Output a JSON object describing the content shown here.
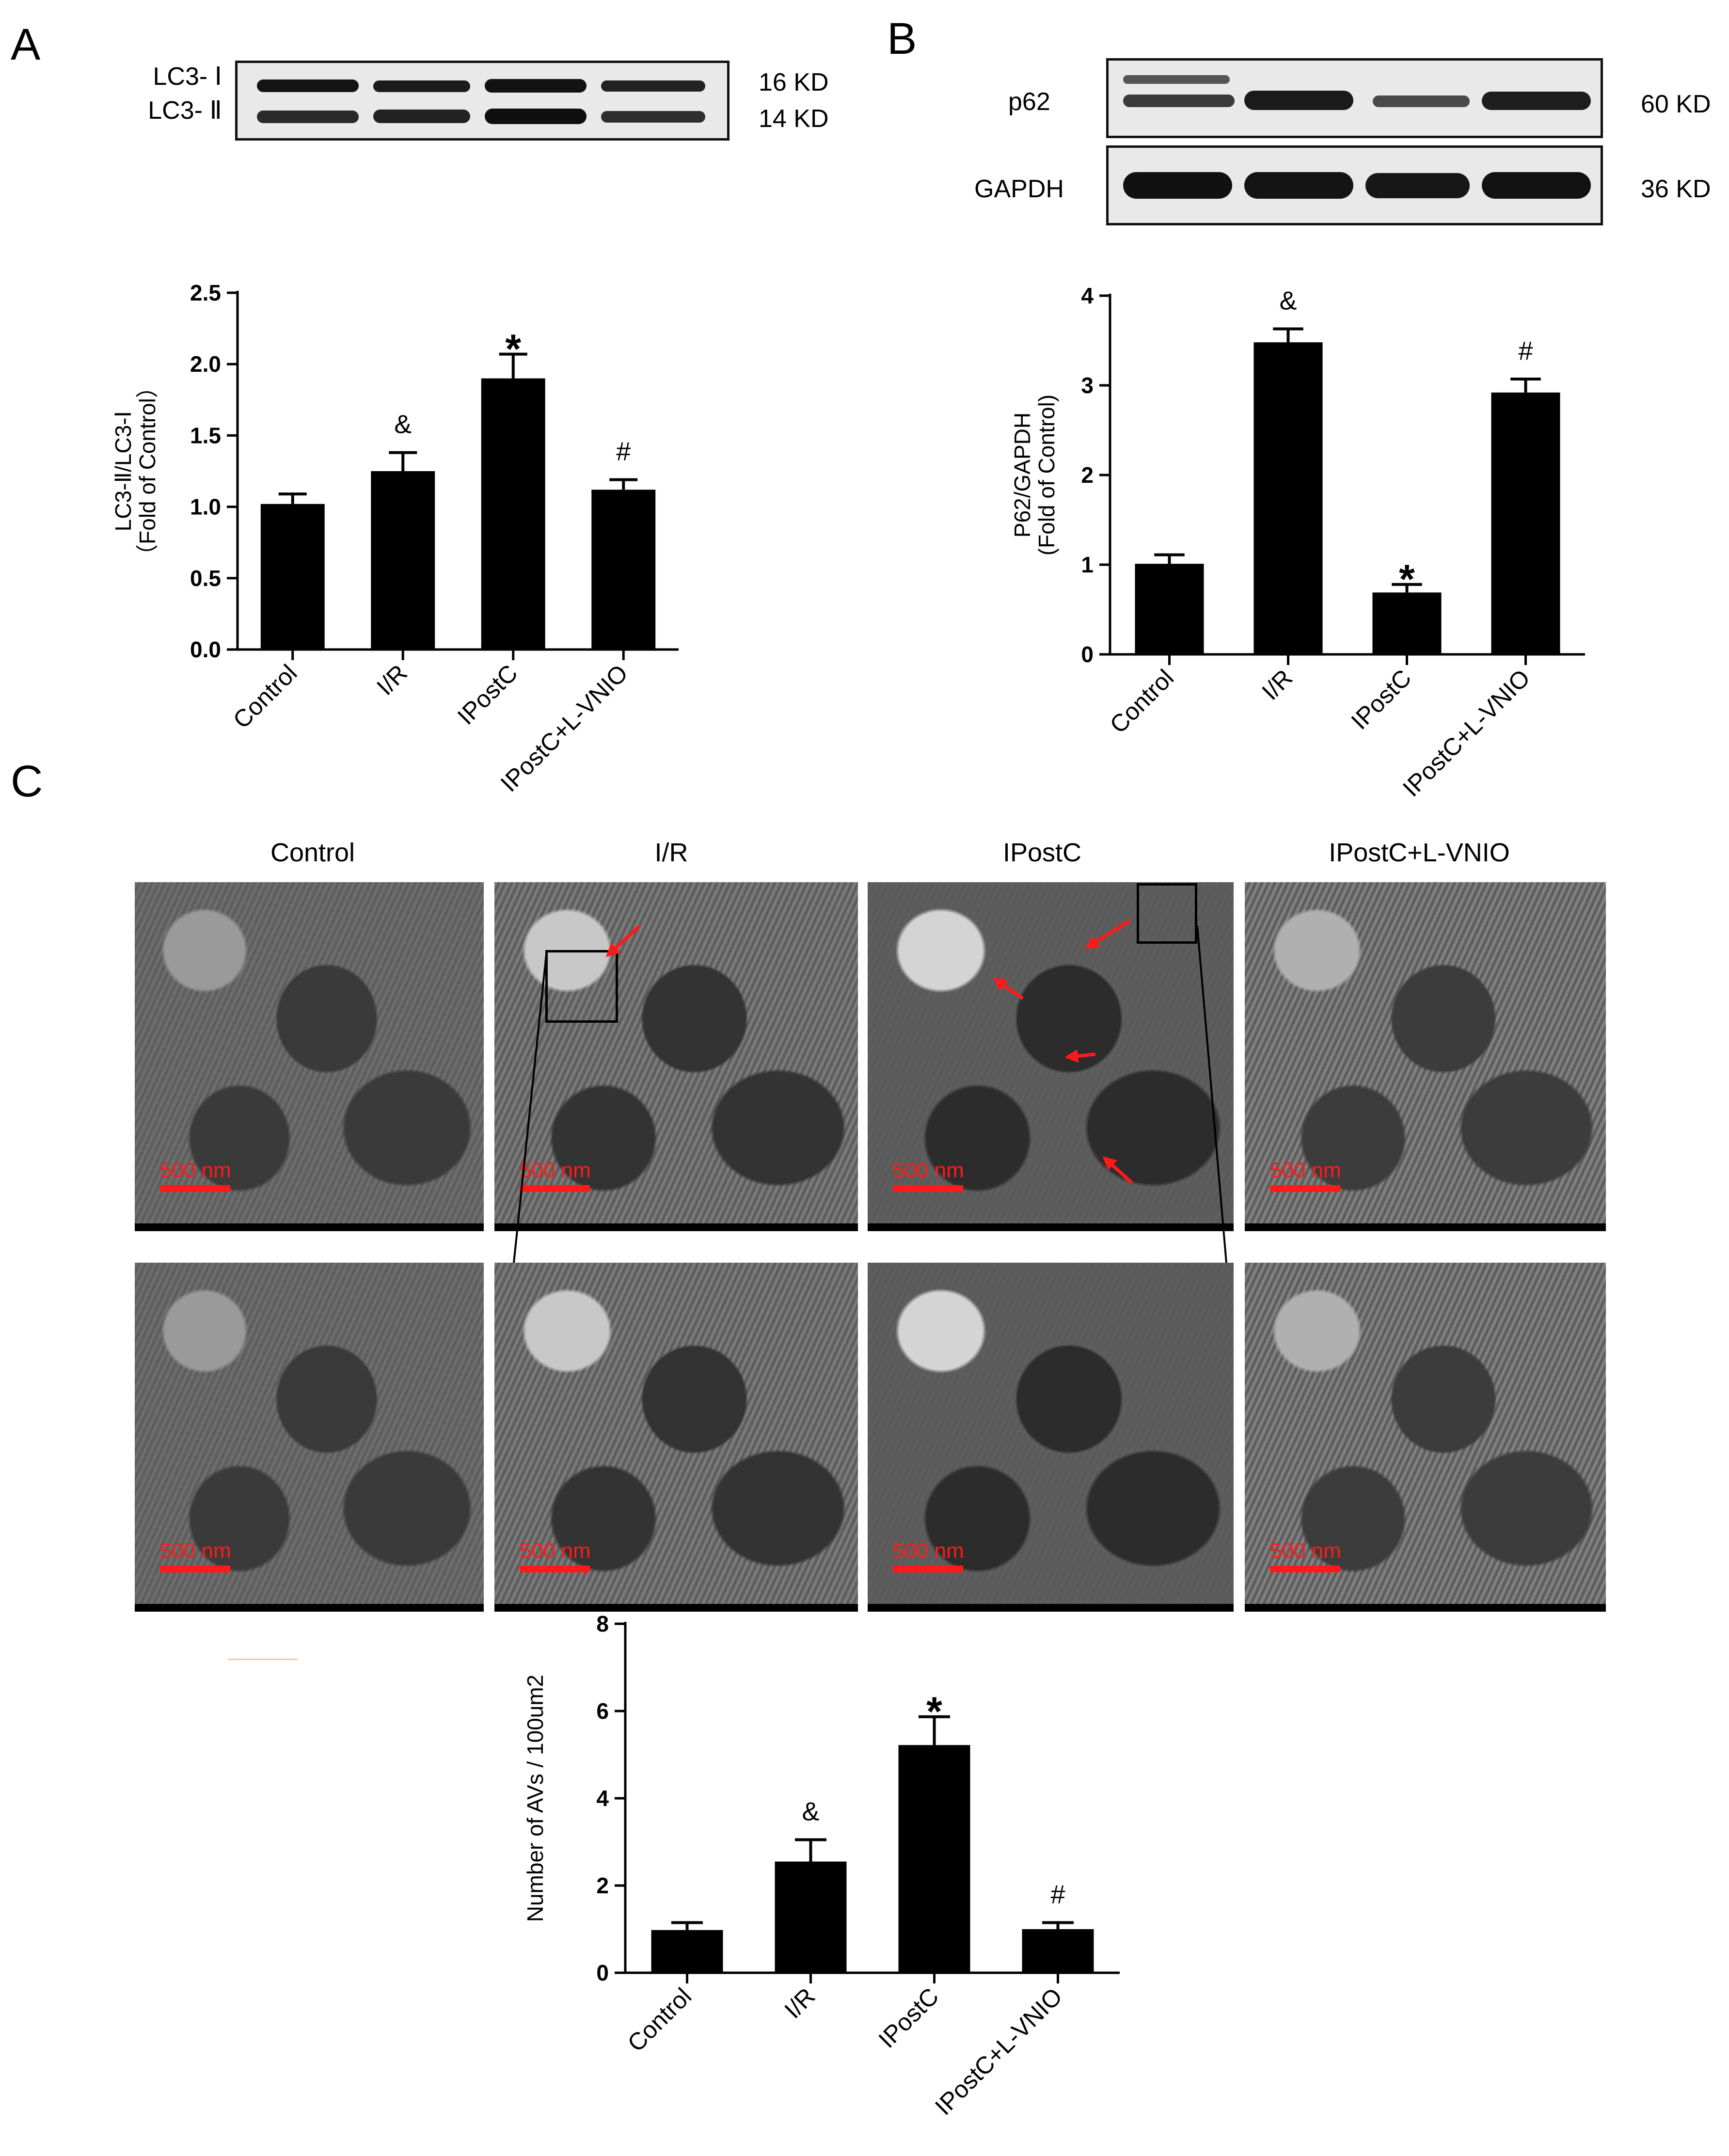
{
  "panels": {
    "a": "A",
    "b": "B",
    "c": "C"
  },
  "blot_a": {
    "lanes": 4,
    "rows": [
      {
        "label": "LC3- Ⅰ",
        "kd": "16 KD"
      },
      {
        "label": "LC3- Ⅱ",
        "kd": "14 KD"
      }
    ]
  },
  "blot_b": {
    "rows": [
      {
        "label": "p62",
        "kd": "60 KD"
      },
      {
        "label": "GAPDH",
        "kd": "36 KD"
      }
    ]
  },
  "em": {
    "columns": [
      "Control",
      "I/R",
      "IPostC",
      "IPostC+L-VNIO"
    ],
    "scale_label": "500 nm",
    "arrow_color": "#ff1a1a"
  },
  "chart_data": [
    {
      "id": "A",
      "type": "bar",
      "categories": [
        "Control",
        "I/R",
        "IPostC",
        "IPostC+L-VNIO"
      ],
      "values": [
        1.02,
        1.25,
        1.9,
        1.12
      ],
      "errors": [
        0.07,
        0.13,
        0.17,
        0.07
      ],
      "annotations": [
        "",
        "&",
        "*",
        "#"
      ],
      "ylabel_lines": [
        "LC3-Ⅱ/LC3-Ⅰ",
        "（Fold of Control）"
      ],
      "ylim": [
        0,
        2.5
      ],
      "yticks": [
        "0.0",
        "0.5",
        "1.0",
        "1.5",
        "2.0",
        "2.5"
      ],
      "ytick_values": [
        0,
        0.5,
        1,
        1.5,
        2,
        2.5
      ]
    },
    {
      "id": "B",
      "type": "bar",
      "categories": [
        "Control",
        "I/R",
        "IPostC",
        "IPostC+L-VNIO"
      ],
      "values": [
        1.01,
        3.48,
        0.69,
        2.92
      ],
      "errors": [
        0.1,
        0.15,
        0.09,
        0.15
      ],
      "annotations": [
        "",
        "&",
        "*",
        "#"
      ],
      "ylabel_lines": [
        "P62/GAPDH",
        "(Fold of Control)"
      ],
      "ylim": [
        0,
        4
      ],
      "yticks": [
        "0",
        "1",
        "2",
        "3",
        "4"
      ],
      "ytick_values": [
        0,
        1,
        2,
        3,
        4
      ]
    },
    {
      "id": "C",
      "type": "bar",
      "categories": [
        "Control",
        "I/R",
        "IPostC",
        "IPostC+L-VNIO"
      ],
      "values": [
        0.98,
        2.55,
        5.22,
        1.0
      ],
      "errors": [
        0.17,
        0.5,
        0.65,
        0.15
      ],
      "annotations": [
        "",
        "&",
        "*",
        "#"
      ],
      "ylabel_lines": [
        "Number of AVs / 100um2"
      ],
      "ylim": [
        0,
        8
      ],
      "yticks": [
        "0",
        "2",
        "4",
        "6",
        "8"
      ],
      "ytick_values": [
        0,
        2,
        4,
        6,
        8
      ]
    }
  ]
}
